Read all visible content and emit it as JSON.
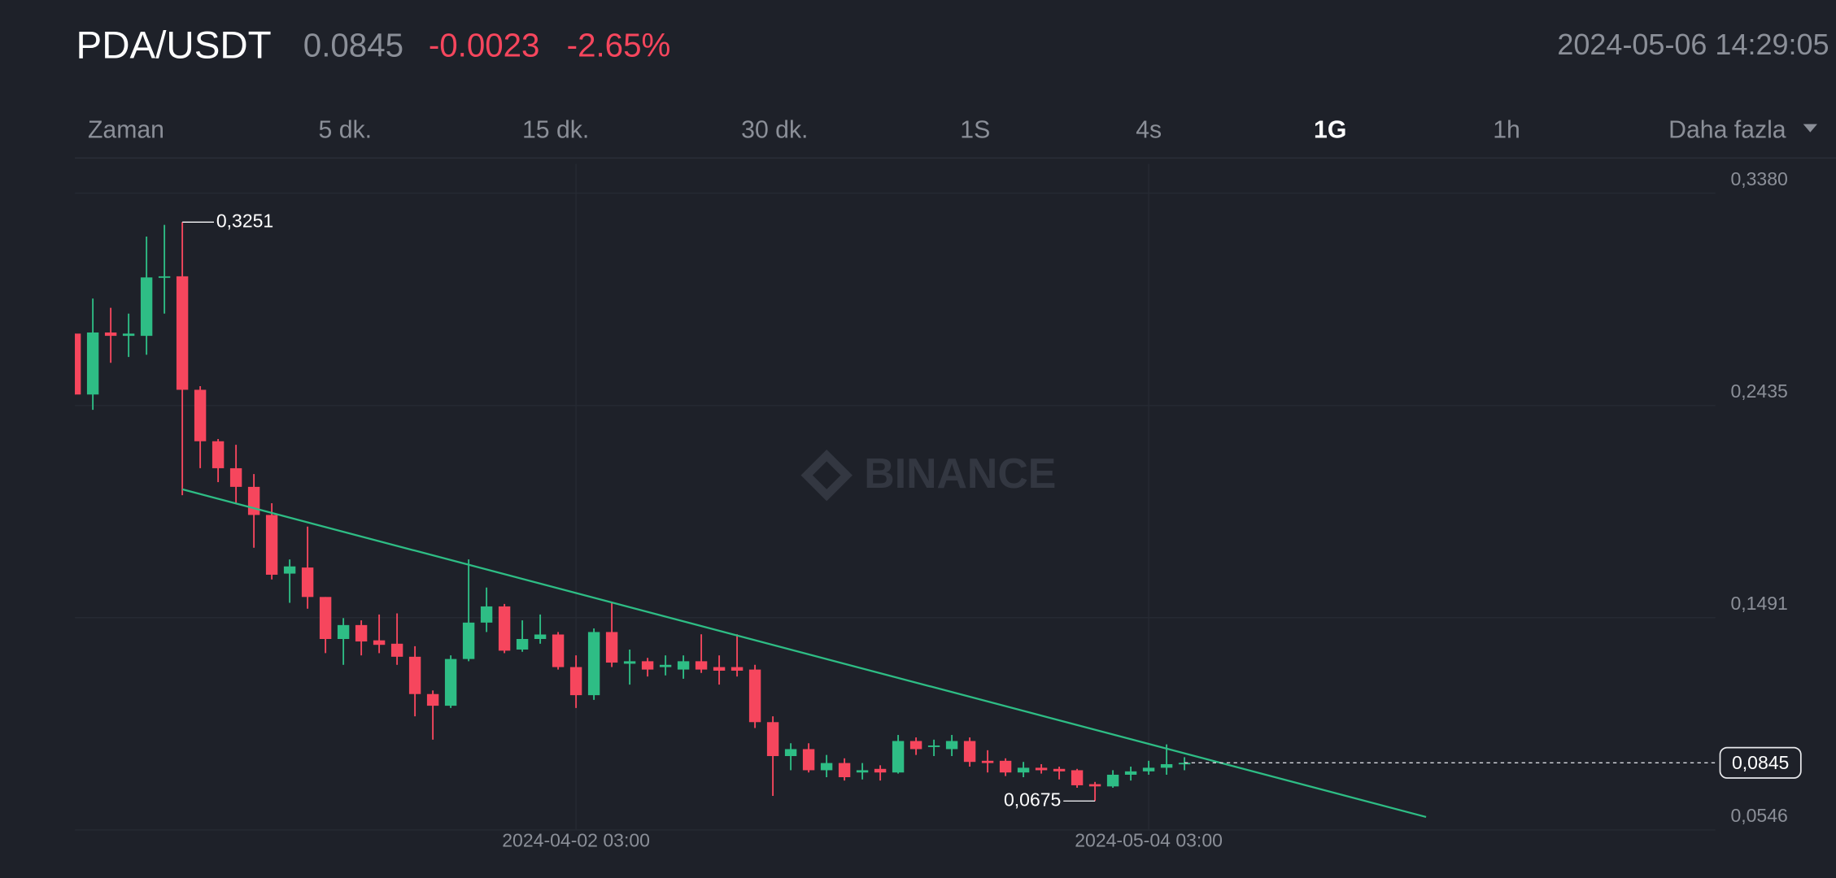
{
  "header": {
    "symbol": "PDA/USDT",
    "price": "0.0845",
    "change": "-0.0023",
    "change_pct": "-2.65%",
    "datetime": "2024-05-06 14:29:05"
  },
  "tabs": [
    "Zaman",
    "5 dk.",
    "15 dk.",
    "30 dk.",
    "1S",
    "4s",
    "1G",
    "1h",
    "Daha fazla"
  ],
  "active_tab": 6,
  "chart_data": {
    "type": "candlestick",
    "watermark": "BINANCE",
    "x": [
      "2024-03-05 03:00",
      "2024-03-06 03:00",
      "2024-03-07 03:00",
      "2024-03-08 03:00",
      "2024-03-09 03:00",
      "2024-03-10 03:00",
      "2024-03-11 03:00",
      "2024-03-12 03:00",
      "2024-03-13 03:00",
      "2024-03-14 03:00",
      "2024-03-15 03:00",
      "2024-03-16 03:00",
      "2024-03-17 03:00",
      "2024-03-18 03:00",
      "2024-03-19 03:00",
      "2024-03-20 03:00",
      "2024-03-21 03:00",
      "2024-03-22 03:00",
      "2024-03-23 03:00",
      "2024-03-24 03:00",
      "2024-03-25 03:00",
      "2024-03-26 03:00",
      "2024-03-27 03:00",
      "2024-03-28 03:00",
      "2024-03-29 03:00",
      "2024-03-30 03:00",
      "2024-03-31 03:00",
      "2024-04-01 03:00",
      "2024-04-02 03:00",
      "2024-04-03 03:00",
      "2024-04-04 03:00",
      "2024-04-05 03:00",
      "2024-04-06 03:00",
      "2024-04-07 03:00",
      "2024-04-08 03:00",
      "2024-04-09 03:00",
      "2024-04-10 03:00",
      "2024-04-11 03:00",
      "2024-04-12 03:00",
      "2024-04-13 03:00",
      "2024-04-14 03:00",
      "2024-04-15 03:00",
      "2024-04-16 03:00",
      "2024-04-17 03:00",
      "2024-04-18 03:00",
      "2024-04-19 03:00",
      "2024-04-20 03:00",
      "2024-04-21 03:00",
      "2024-04-22 03:00",
      "2024-04-23 03:00",
      "2024-04-24 03:00",
      "2024-04-25 03:00",
      "2024-04-26 03:00",
      "2024-04-27 03:00",
      "2024-04-28 03:00",
      "2024-04-29 03:00",
      "2024-04-30 03:00",
      "2024-05-01 03:00",
      "2024-05-02 03:00",
      "2024-05-03 03:00",
      "2024-05-04 03:00",
      "2024-05-05 03:00",
      "2024-05-06 03:00"
    ],
    "open": [
      0.2755,
      0.2484,
      0.276,
      0.2745,
      0.2745,
      0.3005,
      0.301,
      0.2505,
      0.2276,
      0.2156,
      0.2073,
      0.1948,
      0.1687,
      0.1714,
      0.1583,
      0.1396,
      0.1458,
      0.139,
      0.1375,
      0.1317,
      0.1151,
      0.1099,
      0.1307,
      0.1469,
      0.1541,
      0.1349,
      0.1396,
      0.1416,
      0.1271,
      0.1146,
      0.1427,
      0.1286,
      0.1297,
      0.1271,
      0.126,
      0.1297,
      0.1271,
      0.1271,
      0.126,
      0.1026,
      0.0875,
      0.0906,
      0.0812,
      0.0844,
      0.0802,
      0.0818,
      0.0802,
      0.0942,
      0.0917,
      0.0906,
      0.0942,
      0.0854,
      0.0854,
      0.0802,
      0.0823,
      0.0818,
      0.0812,
      0.075,
      0.074,
      0.0792,
      0.0807,
      0.0823,
      0.0839
    ],
    "high": [
      0.2755,
      0.2911,
      0.287,
      0.2844,
      0.3187,
      0.3239,
      0.3251,
      0.2521,
      0.2286,
      0.226,
      0.213,
      0.2,
      0.175,
      0.1896,
      0.1583,
      0.1489,
      0.1479,
      0.1505,
      0.151,
      0.1364,
      0.1167,
      0.1323,
      0.175,
      0.1625,
      0.1552,
      0.1479,
      0.1505,
      0.1427,
      0.1323,
      0.1443,
      0.1557,
      0.1349,
      0.1312,
      0.1323,
      0.1323,
      0.1417,
      0.1323,
      0.1417,
      0.1281,
      0.1052,
      0.0932,
      0.0932,
      0.088,
      0.0865,
      0.0844,
      0.0834,
      0.0969,
      0.0958,
      0.0948,
      0.0969,
      0.0958,
      0.0901,
      0.0865,
      0.0849,
      0.0839,
      0.0828,
      0.0818,
      0.076,
      0.0812,
      0.0828,
      0.0854,
      0.0927,
      0.087
    ],
    "low": [
      0.2484,
      0.2416,
      0.2625,
      0.2651,
      0.2661,
      0.2844,
      0.2036,
      0.2156,
      0.2094,
      0.2,
      0.1802,
      0.1661,
      0.1557,
      0.1531,
      0.1333,
      0.1281,
      0.1323,
      0.1333,
      0.1281,
      0.1052,
      0.0948,
      0.1089,
      0.1297,
      0.1427,
      0.1333,
      0.1339,
      0.1375,
      0.126,
      0.1089,
      0.1125,
      0.1271,
      0.1193,
      0.1229,
      0.1234,
      0.1219,
      0.1245,
      0.1193,
      0.1229,
      0.1,
      0.0698,
      0.0812,
      0.0802,
      0.0781,
      0.0766,
      0.0771,
      0.0766,
      0.0797,
      0.088,
      0.0875,
      0.0875,
      0.0828,
      0.0802,
      0.0786,
      0.0781,
      0.0797,
      0.0771,
      0.0734,
      0.0675,
      0.0734,
      0.0766,
      0.0792,
      0.0792,
      0.0812
    ],
    "close": [
      0.2484,
      0.276,
      0.2745,
      0.2755,
      0.3005,
      0.301,
      0.2505,
      0.2276,
      0.2156,
      0.2073,
      0.1948,
      0.1682,
      0.1719,
      0.1583,
      0.1396,
      0.1458,
      0.1385,
      0.137,
      0.1317,
      0.1151,
      0.1099,
      0.1307,
      0.1469,
      0.1541,
      0.1344,
      0.1396,
      0.1416,
      0.1271,
      0.1146,
      0.1427,
      0.1291,
      0.1297,
      0.126,
      0.1281,
      0.1297,
      0.126,
      0.1255,
      0.1255,
      0.1026,
      0.0875,
      0.0906,
      0.0812,
      0.0844,
      0.0781,
      0.0812,
      0.0802,
      0.0942,
      0.0906,
      0.0922,
      0.0942,
      0.0849,
      0.0844,
      0.0802,
      0.0823,
      0.0812,
      0.0807,
      0.0745,
      0.074,
      0.0792,
      0.0807,
      0.0823,
      0.0839,
      0.0845
    ],
    "up_color": "#2ebd85",
    "down_color": "#f6465d",
    "xlim": [
      "2024-03-05 03:00",
      "2024-06-04 19:00"
    ],
    "xticks": [
      "2024-04-02 03:00",
      "2024-05-04 03:00"
    ],
    "ylim": [
      0.0546,
      0.338
    ],
    "yticks": [
      {
        "value": 0.338,
        "label": "0,3380"
      },
      {
        "value": 0.2435,
        "label": "0,2435"
      },
      {
        "value": 0.1491,
        "label": "0,1491"
      },
      {
        "value": 0.0546,
        "label": "0,0546"
      }
    ],
    "grid": true,
    "last_price": {
      "value": 0.0845,
      "label": "0,0845"
    },
    "annotations": [
      {
        "x": "2024-03-11 03:00",
        "value": 0.3251,
        "label": "0,3251",
        "side": "right"
      },
      {
        "x": "2024-05-01 03:00",
        "value": 0.0675,
        "label": "0,0675",
        "side": "left"
      }
    ],
    "trendline": {
      "x": [
        "2024-03-11 03:00",
        "2024-05-19 15:00"
      ],
      "values": [
        0.2062,
        0.0604
      ],
      "color": "#2ebd85"
    }
  }
}
